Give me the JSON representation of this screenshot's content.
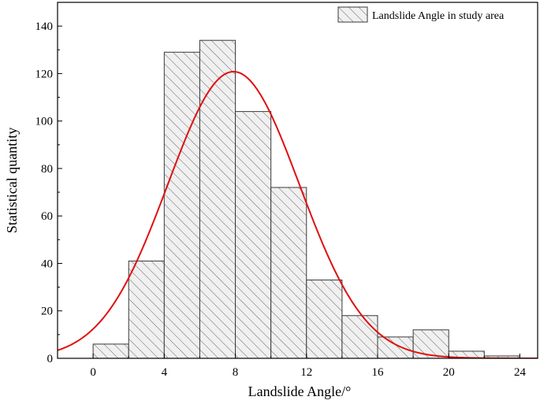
{
  "chart_data": {
    "type": "bar",
    "title": "",
    "xlabel": "Landslide Angle/°",
    "ylabel": "Statistical quantity",
    "xlim": [
      -2,
      25
    ],
    "ylim": [
      0,
      150
    ],
    "x_ticks": [
      0,
      4,
      8,
      12,
      16,
      20,
      24
    ],
    "y_ticks": [
      0,
      20,
      40,
      60,
      80,
      100,
      120,
      140
    ],
    "bin_width": 2,
    "bins": [
      {
        "start": 0,
        "end": 2,
        "value": 6
      },
      {
        "start": 2,
        "end": 4,
        "value": 41
      },
      {
        "start": 4,
        "end": 6,
        "value": 129
      },
      {
        "start": 6,
        "end": 8,
        "value": 134
      },
      {
        "start": 8,
        "end": 10,
        "value": 104
      },
      {
        "start": 10,
        "end": 12,
        "value": 72
      },
      {
        "start": 12,
        "end": 14,
        "value": 33
      },
      {
        "start": 14,
        "end": 16,
        "value": 18
      },
      {
        "start": 16,
        "end": 18,
        "value": 9
      },
      {
        "start": 18,
        "end": 20,
        "value": 12
      },
      {
        "start": 20,
        "end": 22,
        "value": 3
      },
      {
        "start": 22,
        "end": 24,
        "value": 1
      }
    ],
    "fit_curve": {
      "type": "normal",
      "peak": 120.8,
      "mean": 7.9,
      "std": 3.7,
      "color": "#e01010"
    },
    "legend": {
      "position": "top-right",
      "entries": [
        "Landslide Angle in study area"
      ]
    },
    "bar_fill": "#f0f0f0",
    "bar_stroke": "#3a3a3a",
    "hatch": "diagonal",
    "grid": false
  }
}
